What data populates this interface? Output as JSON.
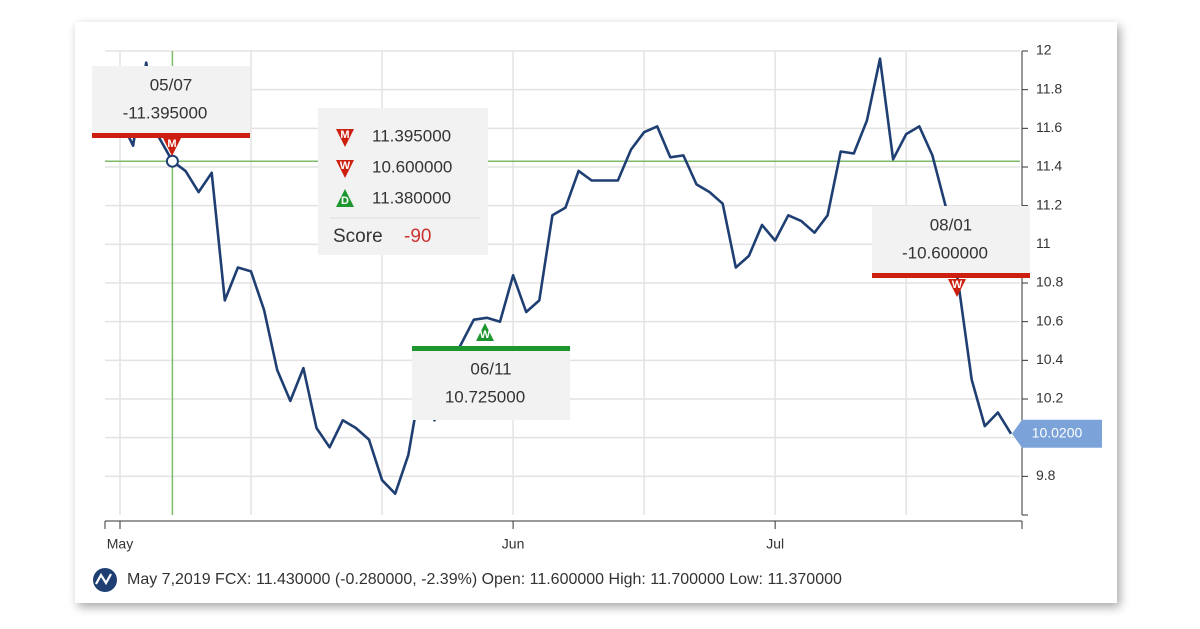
{
  "chart_data": {
    "type": "line",
    "categories": [
      "May",
      null,
      null,
      null,
      null,
      null,
      null,
      null,
      null,
      null,
      null,
      null,
      null,
      null,
      null,
      null,
      null,
      null,
      null,
      null,
      null,
      null,
      null,
      null,
      null,
      null,
      null,
      null,
      null,
      null,
      "Jun",
      null,
      null,
      null,
      null,
      null,
      null,
      null,
      null,
      null,
      null,
      null,
      null,
      null,
      null,
      null,
      null,
      null,
      null,
      null,
      "Jul",
      null,
      null,
      null,
      null,
      null,
      null,
      null,
      null,
      null,
      null,
      null,
      null,
      null,
      null,
      null,
      null,
      null,
      null
    ],
    "series": [
      {
        "color": "#1f3f73",
        "values": [
          11.65,
          11.51,
          11.94,
          11.55,
          11.43,
          11.38,
          11.27,
          11.37,
          10.71,
          10.88,
          10.86,
          10.66,
          10.35,
          10.19,
          10.36,
          10.05,
          9.95,
          10.09,
          10.05,
          9.99,
          9.78,
          9.71,
          9.91,
          10.3,
          10.09,
          10.35,
          10.48,
          10.61,
          10.62,
          10.6,
          10.84,
          10.65,
          10.71,
          11.15,
          11.19,
          11.38,
          11.33,
          11.33,
          11.33,
          11.49,
          11.58,
          11.61,
          11.45,
          11.46,
          11.31,
          11.27,
          11.21,
          10.88,
          10.94,
          11.1,
          11.02,
          11.15,
          11.12,
          11.06,
          11.15,
          11.48,
          11.47,
          11.64,
          11.96,
          11.44,
          11.57,
          11.61,
          11.46,
          11.2,
          10.79,
          10.3,
          10.06,
          10.13,
          10.02
        ],
        "value_labels": [
          null,
          null,
          null,
          null,
          null,
          null,
          null,
          null,
          null,
          null,
          null,
          null,
          null,
          null,
          null,
          null,
          null,
          null,
          null,
          null,
          null,
          null,
          null,
          null,
          null,
          null,
          null,
          null,
          null,
          null,
          null,
          null,
          null,
          null,
          null,
          null,
          null,
          null,
          null,
          null,
          null,
          null,
          null,
          null,
          null,
          null,
          null,
          null,
          null,
          null,
          null,
          null,
          null,
          null,
          null,
          null,
          null,
          null,
          null,
          null,
          null,
          null,
          null,
          null,
          null,
          null,
          null,
          null,
          "10.0200"
        ]
      }
    ],
    "ylim": [
      9.6,
      12
    ],
    "yticks": [
      9.8,
      10,
      10.2,
      10.4,
      10.6,
      10.8,
      11,
      11.2,
      11.4,
      11.6,
      11.8,
      12
    ],
    "grid": true,
    "annotations": [
      {
        "date": "05/07",
        "text": "-11.395000",
        "icon": "M",
        "color": "#cc1f10"
      },
      {
        "date": "06/11",
        "text": "10.725000",
        "icon": "W",
        "color": "#1e9630"
      },
      {
        "date": "08/01",
        "text": "-10.600000",
        "icon": "W",
        "color": "#cc1f10"
      }
    ],
    "signal_legend": {
      "items": [
        {
          "icon": "M",
          "value": "11.395000",
          "color": "#cc1f10"
        },
        {
          "icon": "W",
          "value": "10.600000",
          "color": "#cc1f10"
        },
        {
          "icon": "D",
          "value": "11.380000",
          "color": "#1e9630"
        }
      ],
      "score_label": "Score",
      "score": "-90"
    },
    "footer": "May 7,2019 FCX: 11.430000 (-0.280000, -2.39%) Open: 11.600000 High: 11.700000 Low: 11.370000"
  }
}
